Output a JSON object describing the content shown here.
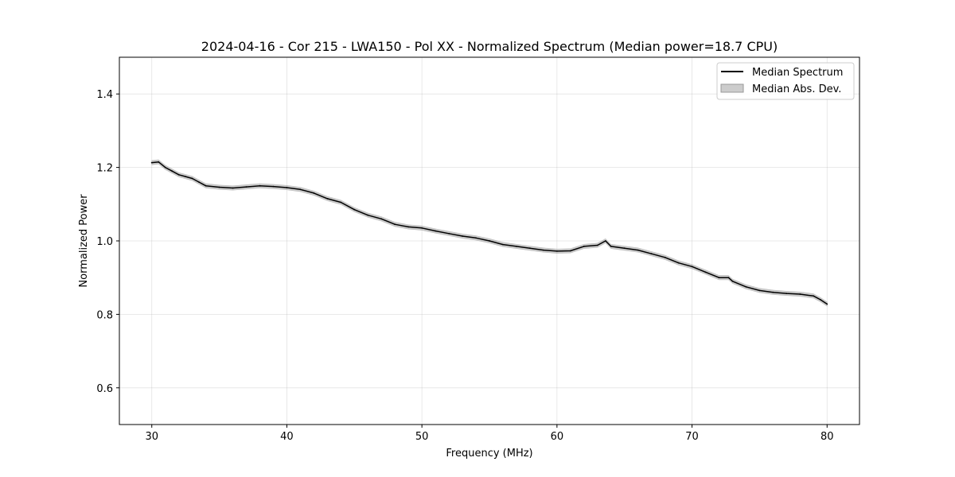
{
  "chart_data": {
    "type": "line",
    "title": "2024-04-16 - Cor 215 - LWA150 - Pol XX - Normalized Spectrum (Median power=18.7 CPU)",
    "xlabel": "Frequency (MHz)",
    "ylabel": "Normalized Power",
    "xlim": [
      27.6,
      82.4
    ],
    "ylim": [
      0.5,
      1.5
    ],
    "xticks": [
      30,
      40,
      50,
      60,
      70,
      80
    ],
    "xtick_labels": [
      "30",
      "40",
      "50",
      "60",
      "70",
      "80"
    ],
    "yticks": [
      0.6,
      0.8,
      1.0,
      1.2,
      1.4
    ],
    "ytick_labels": [
      "0.6",
      "0.8",
      "1.0",
      "1.2",
      "1.4"
    ],
    "grid": true,
    "legend_position": "top-right",
    "series": [
      {
        "name": "Median Spectrum",
        "kind": "line",
        "color": "#000000",
        "x": [
          30,
          30.5,
          31,
          31.5,
          32,
          32.5,
          33,
          33.5,
          34,
          35,
          36,
          37,
          38,
          39,
          40,
          41,
          42,
          43,
          44,
          45,
          46,
          47,
          48,
          49,
          50,
          51,
          52,
          53,
          54,
          55,
          56,
          57,
          58,
          59,
          60,
          61,
          62,
          63,
          63.6,
          64,
          65,
          66,
          67,
          68,
          69,
          70,
          71,
          72,
          72.7,
          73,
          74,
          75,
          76,
          77,
          78,
          79,
          79.5,
          80
        ],
        "y": [
          1.213,
          1.215,
          1.2,
          1.19,
          1.18,
          1.175,
          1.17,
          1.16,
          1.15,
          1.146,
          1.144,
          1.147,
          1.15,
          1.148,
          1.145,
          1.14,
          1.13,
          1.115,
          1.105,
          1.085,
          1.07,
          1.06,
          1.045,
          1.038,
          1.035,
          1.027,
          1.02,
          1.013,
          1.008,
          1.0,
          0.99,
          0.985,
          0.98,
          0.975,
          0.972,
          0.973,
          0.985,
          0.988,
          1.0,
          0.985,
          0.98,
          0.975,
          0.965,
          0.955,
          0.94,
          0.93,
          0.915,
          0.9,
          0.9,
          0.89,
          0.875,
          0.865,
          0.86,
          0.857,
          0.855,
          0.85,
          0.84,
          0.828
        ]
      },
      {
        "name": "Median Abs. Dev.",
        "kind": "band",
        "color": "#999999",
        "half_width": 0.006
      }
    ]
  }
}
